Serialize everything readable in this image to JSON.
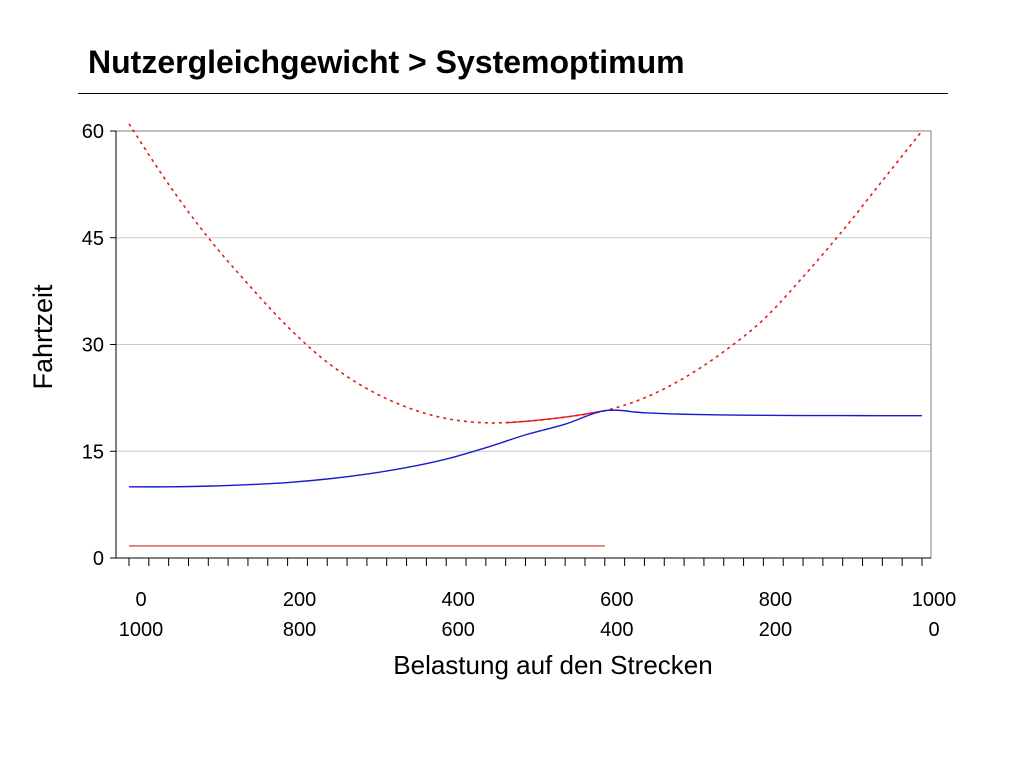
{
  "slide": {
    "title": "Nutzergleichgewicht > Systemoptimum"
  },
  "chart_data": {
    "type": "line",
    "title": "",
    "ylabel": "Fahrtzeit",
    "xlabel": "Belastung auf den Strecken",
    "xlim": [
      0,
      1000
    ],
    "ylim": [
      0,
      60
    ],
    "y_ticks": [
      "0",
      "15",
      "30",
      "45",
      "60"
    ],
    "y_tick_values": [
      0,
      15,
      30,
      45,
      60
    ],
    "x_ticks_top": [
      "0",
      "200",
      "400",
      "600",
      "800",
      "1000"
    ],
    "x_ticks_bottom": [
      "1000",
      "800",
      "600",
      "400",
      "200",
      "0"
    ],
    "x_tick_values": [
      0,
      200,
      400,
      600,
      800,
      1000
    ],
    "grid": true,
    "colors": {
      "blue": "#1a1ad0",
      "red": "#e41a1a",
      "red_dim": "#d05050",
      "grid": "#c8c8c8"
    },
    "series": [
      {
        "style": "dotted",
        "color": "red",
        "x": [
          0,
          50,
          100,
          150,
          200,
          250,
          300,
          350,
          400,
          450,
          500,
          550,
          600,
          650,
          700,
          750,
          800,
          850,
          900,
          950,
          1000
        ],
        "y": [
          61,
          52.5,
          45,
          38.5,
          32.5,
          27.5,
          23.8,
          21.2,
          19.6,
          19,
          19.2,
          19.8,
          20.7,
          22.5,
          25.3,
          29,
          33.5,
          39.5,
          46,
          53,
          60
        ]
      },
      {
        "style": "solid",
        "color": "red",
        "x": [
          475,
          500,
          550,
          600
        ],
        "y": [
          19,
          19.2,
          19.8,
          20.7
        ]
      },
      {
        "style": "solid",
        "color": "blue",
        "x": [
          0,
          50,
          100,
          150,
          200,
          250,
          300,
          350,
          400,
          450,
          500,
          550,
          600,
          650,
          700,
          750,
          800,
          850,
          900,
          950,
          1000
        ],
        "y": [
          10,
          10,
          10.1,
          10.3,
          10.6,
          11.1,
          11.8,
          12.7,
          13.9,
          15.5,
          17.3,
          18.8,
          20.7,
          20.4,
          20.2,
          20.1,
          20.05,
          20.02,
          20.01,
          20,
          20
        ]
      },
      {
        "style": "solid",
        "color": "red_dim",
        "x": [
          0,
          600
        ],
        "y": [
          1.7,
          1.7
        ]
      }
    ]
  }
}
